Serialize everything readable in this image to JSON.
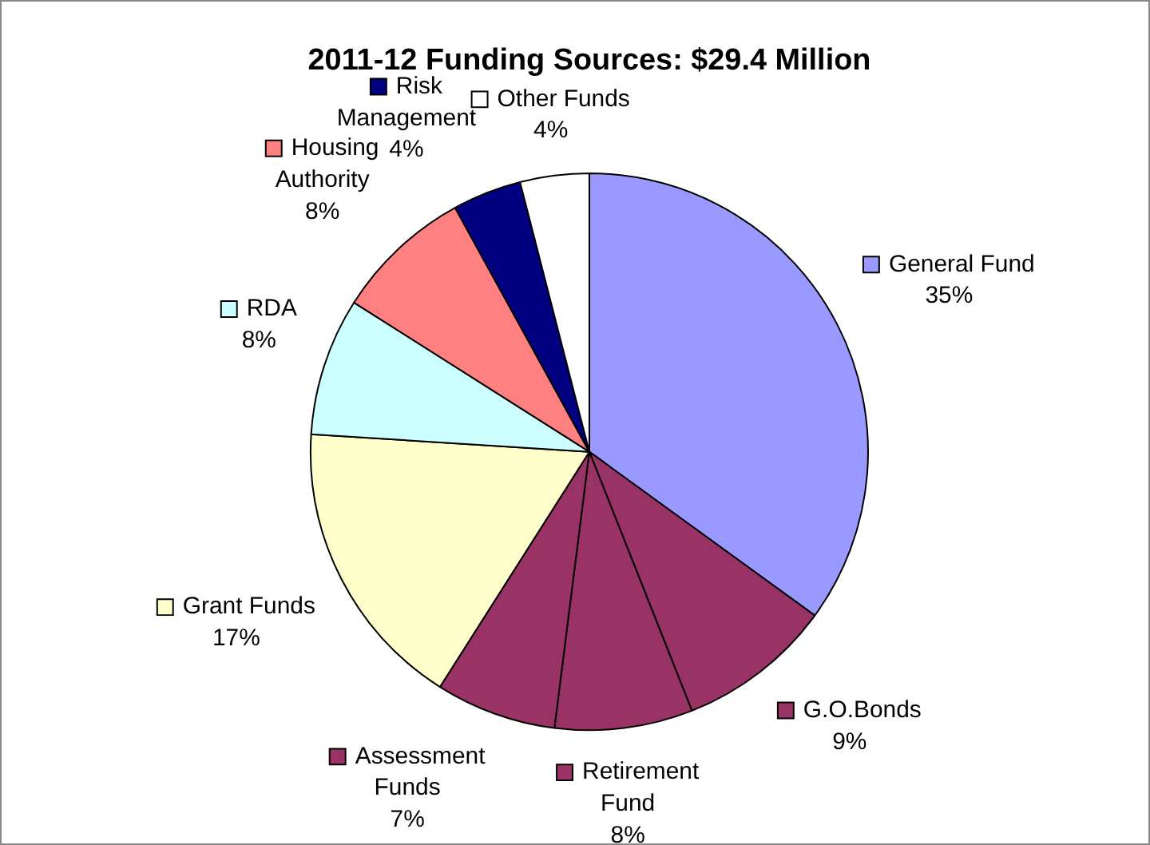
{
  "chart_data": {
    "type": "pie",
    "title": "2011-12 Funding Sources: $29.4 Million",
    "categories": [
      "General Fund",
      "G.O.Bonds",
      "Retirement Fund",
      "Assessment Funds",
      "Grant Funds",
      "RDA",
      "Housing Authority",
      "Risk Management",
      "Other Funds"
    ],
    "values": [
      35,
      9,
      8,
      7,
      17,
      8,
      8,
      4,
      4
    ],
    "colors": [
      "#9999ff",
      "#993366",
      "#993366",
      "#993366",
      "#ffffcc",
      "#ccffff",
      "#ff8080",
      "#000080",
      "#ffffff"
    ],
    "value_labels": [
      "35%",
      "9%",
      "8%",
      "7%",
      "17%",
      "8%",
      "8%",
      "4%",
      "4%"
    ],
    "legend": true
  }
}
